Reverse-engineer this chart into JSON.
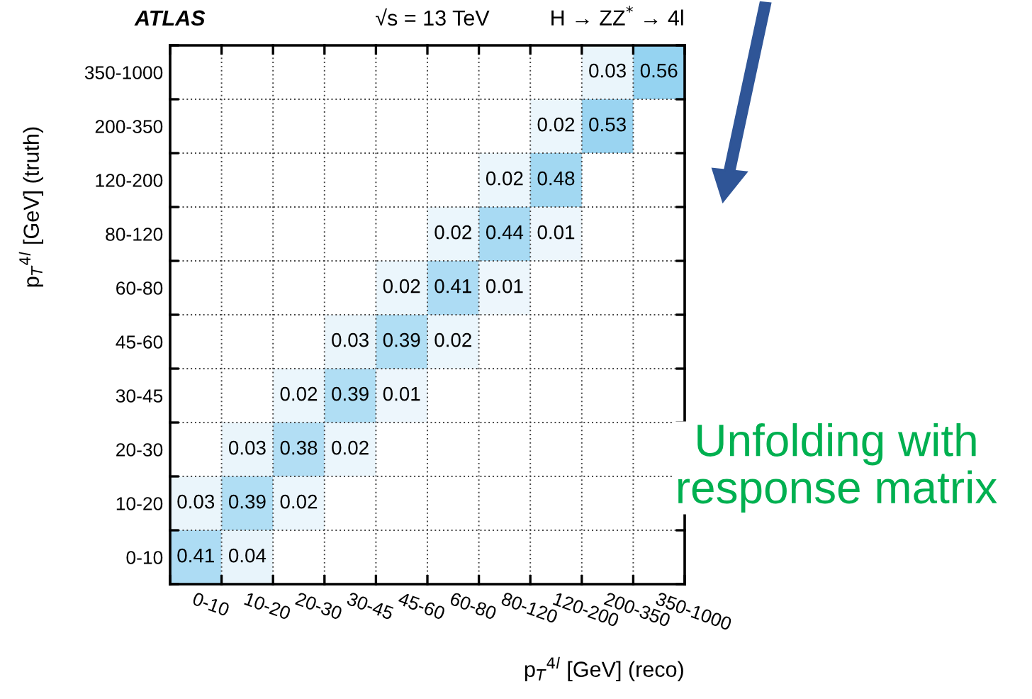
{
  "chart_data": {
    "type": "heatmap",
    "xlabel": "p$_{T}$$^{4l}$ [GeV] (reco)",
    "ylabel": "p$_{T}$$^{4l}$ [GeV] (truth)",
    "categories": [
      "0-10",
      "10-20",
      "20-30",
      "30-45",
      "45-60",
      "60-80",
      "80-120",
      "120-200",
      "200-350",
      "350-1000"
    ],
    "y_categories": [
      "350-1000",
      "200-350",
      "120-200",
      "80-120",
      "60-80",
      "45-60",
      "30-45",
      "20-30",
      "10-20",
      "0-10"
    ],
    "cells": [
      [
        null,
        null,
        null,
        null,
        null,
        null,
        null,
        null,
        0.03,
        0.56
      ],
      [
        null,
        null,
        null,
        null,
        null,
        null,
        null,
        0.02,
        0.53,
        null
      ],
      [
        null,
        null,
        null,
        null,
        null,
        null,
        0.02,
        0.48,
        null,
        null
      ],
      [
        null,
        null,
        null,
        null,
        null,
        0.02,
        0.44,
        0.01,
        null,
        null
      ],
      [
        null,
        null,
        null,
        null,
        0.02,
        0.41,
        0.01,
        null,
        null,
        null
      ],
      [
        null,
        null,
        null,
        0.03,
        0.39,
        0.02,
        null,
        null,
        null,
        null
      ],
      [
        null,
        null,
        0.02,
        0.39,
        0.01,
        null,
        null,
        null,
        null,
        null
      ],
      [
        null,
        0.03,
        0.38,
        0.02,
        null,
        null,
        null,
        null,
        null,
        null
      ],
      [
        0.03,
        0.39,
        0.02,
        null,
        null,
        null,
        null,
        null,
        null,
        null
      ],
      [
        0.41,
        0.04,
        null,
        null,
        null,
        null,
        null,
        null,
        null,
        null
      ]
    ],
    "data_labels": true,
    "grid": true,
    "annotations": [
      "ATLAS",
      "√s = 13 TeV",
      "H → ZZ$^{*}$ → 4l",
      "Unfolding with\nresponse matrix"
    ]
  }
}
